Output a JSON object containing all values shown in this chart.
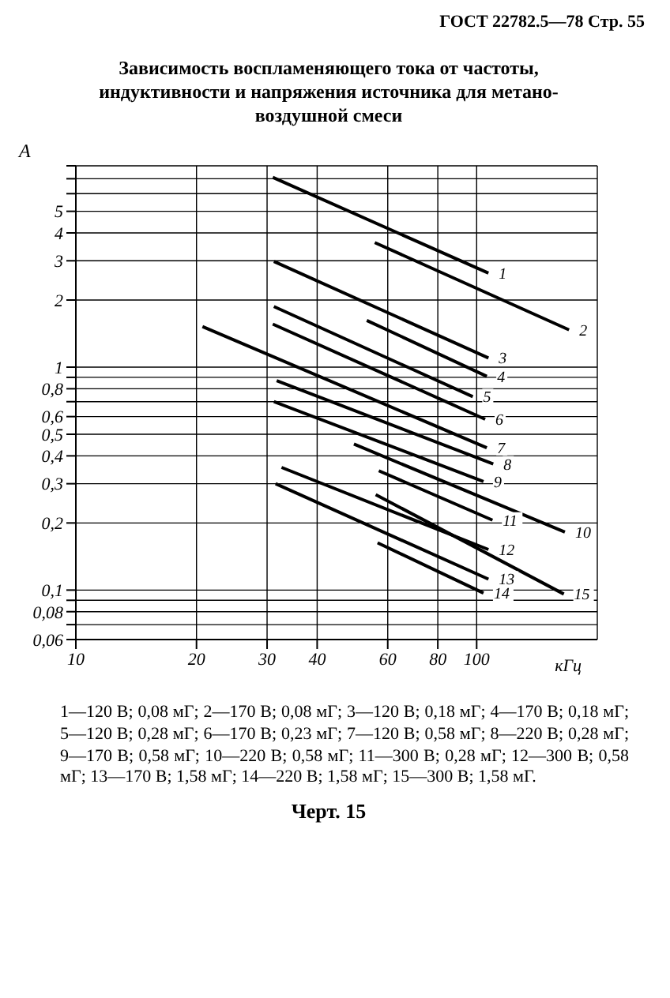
{
  "chart_data": {
    "type": "line",
    "title": "Зависимость воспламеняющего тока от частоты, индуктивности и напряжения источника для метано-воздушной смеси",
    "xlabel": "кГц",
    "ylabel": "A",
    "log": "xy",
    "grid": true,
    "marker": "none",
    "line_style": "solid",
    "xlim": [
      10,
      200
    ],
    "xticks": [
      10,
      20,
      30,
      40,
      60,
      80,
      100
    ],
    "ylim": [
      0.06,
      8
    ],
    "yticks": [
      {
        "value": 0.06,
        "label": "0,06"
      },
      {
        "value": 0.07,
        "label": null
      },
      {
        "value": 0.08,
        "label": "0,08"
      },
      {
        "value": 0.09,
        "label": null
      },
      {
        "value": 0.1,
        "label": "0,1"
      },
      {
        "value": 0.2,
        "label": "0,2"
      },
      {
        "value": 0.3,
        "label": "0,3"
      },
      {
        "value": 0.4,
        "label": "0,4"
      },
      {
        "value": 0.5,
        "label": "0,5"
      },
      {
        "value": 0.6,
        "label": "0,6"
      },
      {
        "value": 0.7,
        "label": null
      },
      {
        "value": 0.8,
        "label": "0,8"
      },
      {
        "value": 0.9,
        "label": null
      },
      1,
      2,
      3,
      4,
      5,
      {
        "value": 6,
        "label": null
      },
      {
        "value": 7,
        "label": null
      },
      {
        "value": 8,
        "label": null
      }
    ],
    "series": [
      {
        "name": "1",
        "color": "#000000",
        "x": [
          31,
          107
        ],
        "values": [
          7.1,
          2.64
        ]
      },
      {
        "name": "2",
        "color": "#000000",
        "x": [
          55.7,
          170
        ],
        "values": [
          3.62,
          1.47
        ]
      },
      {
        "name": "3",
        "color": "#000000",
        "x": [
          31.2,
          107
        ],
        "values": [
          2.98,
          1.1
        ]
      },
      {
        "name": "4",
        "color": "#000000",
        "x": [
          53.2,
          106
        ],
        "values": [
          1.62,
          0.91
        ]
      },
      {
        "name": "5",
        "color": "#000000",
        "x": [
          31.2,
          97.8
        ],
        "values": [
          1.87,
          0.737
        ]
      },
      {
        "name": "6",
        "color": "#000000",
        "x": [
          31,
          105
        ],
        "values": [
          1.56,
          0.584
        ]
      },
      {
        "name": "7",
        "color": "#000000",
        "x": [
          20.7,
          106
        ],
        "values": [
          1.52,
          0.435
        ]
      },
      {
        "name": "8",
        "color": "#000000",
        "x": [
          31.7,
          110
        ],
        "values": [
          0.87,
          0.368
        ]
      },
      {
        "name": "9",
        "color": "#000000",
        "x": [
          31.2,
          104
        ],
        "values": [
          0.7,
          0.307
        ]
      },
      {
        "name": "10",
        "color": "#000000",
        "x": [
          49.4,
          166
        ],
        "values": [
          0.452,
          0.182
        ]
      },
      {
        "name": "11",
        "color": "#000000",
        "x": [
          57,
          109.5
        ],
        "values": [
          0.343,
          0.206
        ]
      },
      {
        "name": "12",
        "color": "#000000",
        "x": [
          32.6,
          107
        ],
        "values": [
          0.355,
          0.152
        ]
      },
      {
        "name": "13",
        "color": "#000000",
        "x": [
          31.5,
          107
        ],
        "values": [
          0.3,
          0.112
        ]
      },
      {
        "name": "14",
        "color": "#000000",
        "x": [
          56.6,
          104
        ],
        "values": [
          0.163,
          0.097
        ]
      },
      {
        "name": "15",
        "color": "#000000",
        "x": [
          56,
          165
        ],
        "values": [
          0.268,
          0.096
        ]
      }
    ],
    "annotations": [
      "ГОСТ 22782.5—78 Стр. 55",
      "1—120 В; 0,08 мГ; 2—170 В; 0,08 мГ; 3—120 В; 0,18 мГ; 4—170 В; 0,18 мГ; 5—120 В; 0,28 мГ; 6—170 В; 0,23 мГ; 7—120 В; 0,58 мГ; 8—220 В; 0,28 мГ; 9—170 В; 0,58 мГ; 10—220 В; 0,58 мГ; 11—300 В; 0,28 мГ; 12—300 В; 0,58 мГ; 13—170 В; 1,58 мГ; 14—220 В; 1,58 мГ; 15—300 В; 1,58 мГ.",
      "Черт. 15"
    ]
  }
}
